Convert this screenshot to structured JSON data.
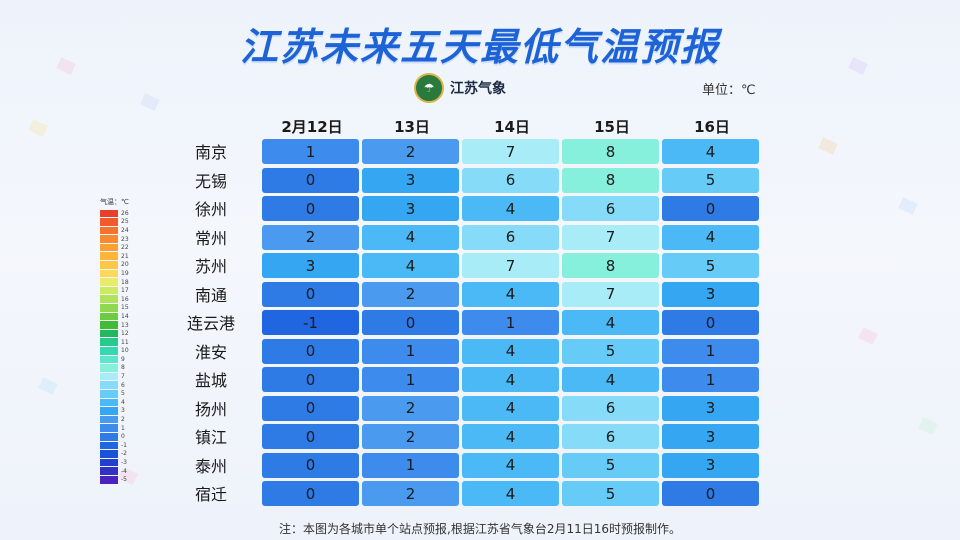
{
  "title": "江苏未来五天最低气温预报",
  "logo_text": "江苏气象",
  "unit_label": "单位：℃",
  "chart_data": {
    "type": "table",
    "columns": [
      "2月12日",
      "13日",
      "14日",
      "15日",
      "16日"
    ],
    "cities": [
      "南京",
      "无锡",
      "徐州",
      "常州",
      "苏州",
      "南通",
      "连云港",
      "淮安",
      "盐城",
      "扬州",
      "镇江",
      "泰州",
      "宿迁"
    ],
    "values": [
      [
        1,
        2,
        7,
        8,
        4
      ],
      [
        0,
        3,
        6,
        8,
        5
      ],
      [
        0,
        3,
        4,
        6,
        0
      ],
      [
        2,
        4,
        6,
        7,
        4
      ],
      [
        3,
        4,
        7,
        8,
        5
      ],
      [
        0,
        2,
        4,
        7,
        3
      ],
      [
        -1,
        0,
        1,
        4,
        0
      ],
      [
        0,
        1,
        4,
        5,
        1
      ],
      [
        0,
        1,
        4,
        4,
        1
      ],
      [
        0,
        2,
        4,
        6,
        3
      ],
      [
        0,
        2,
        4,
        6,
        3
      ],
      [
        0,
        1,
        4,
        5,
        3
      ],
      [
        0,
        2,
        4,
        5,
        0
      ]
    ]
  },
  "legend": {
    "title": "气温：℃",
    "items": [
      {
        "label": "26",
        "color": "#e8402a"
      },
      {
        "label": "25",
        "color": "#f05a2c"
      },
      {
        "label": "24",
        "color": "#f4732e"
      },
      {
        "label": "23",
        "color": "#f78a30"
      },
      {
        "label": "22",
        "color": "#f9a034"
      },
      {
        "label": "21",
        "color": "#fbb53c"
      },
      {
        "label": "20",
        "color": "#fcc846"
      },
      {
        "label": "19",
        "color": "#fdd85a"
      },
      {
        "label": "18",
        "color": "#e9ec6a"
      },
      {
        "label": "17",
        "color": "#cdea64"
      },
      {
        "label": "16",
        "color": "#b0e35a"
      },
      {
        "label": "15",
        "color": "#90d84e"
      },
      {
        "label": "14",
        "color": "#6ccc40"
      },
      {
        "label": "13",
        "color": "#3ebd34"
      },
      {
        "label": "12",
        "color": "#22b860"
      },
      {
        "label": "11",
        "color": "#27c98c"
      },
      {
        "label": "10",
        "color": "#36d8b0"
      },
      {
        "label": "9",
        "color": "#5ee6cc"
      },
      {
        "label": "8",
        "color": "#86f0dc"
      },
      {
        "label": "7",
        "color": "#a8ecf8"
      },
      {
        "label": "6",
        "color": "#86dcf8"
      },
      {
        "label": "5",
        "color": "#66cbf7"
      },
      {
        "label": "4",
        "color": "#4ab9f5"
      },
      {
        "label": "3",
        "color": "#34a6f2"
      },
      {
        "label": "2",
        "color": "#4a9af0"
      },
      {
        "label": "1",
        "color": "#3d8bec"
      },
      {
        "label": "0",
        "color": "#2f7be6"
      },
      {
        "label": "-1",
        "color": "#1f66e0"
      },
      {
        "label": "-2",
        "color": "#1a52d8"
      },
      {
        "label": "-3",
        "color": "#2240cf"
      },
      {
        "label": "-4",
        "color": "#3330c6"
      },
      {
        "label": "-5",
        "color": "#4a22bd"
      }
    ]
  },
  "footnote": "注：本图为各城市单个站点预报,根据江苏省气象台2月11日16时预报制作。"
}
